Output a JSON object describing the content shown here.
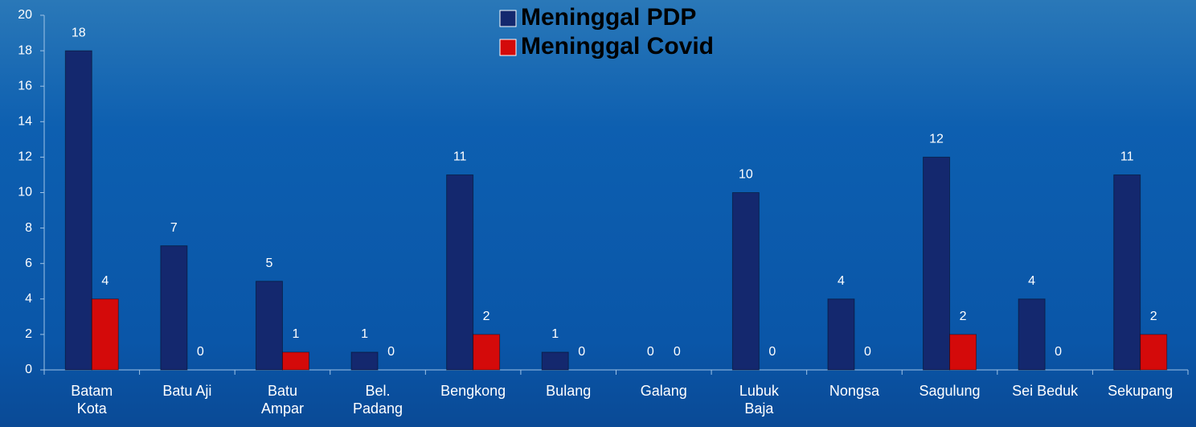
{
  "chart_data": {
    "type": "bar",
    "categories": [
      "Batam Kota",
      "Batu Aji",
      "Batu Ampar",
      "Bel. Padang",
      "Bengkong",
      "Bulang",
      "Galang",
      "Lubuk Baja",
      "Nongsa",
      "Sagulung",
      "Sei Beduk",
      "Sekupang"
    ],
    "series": [
      {
        "name": "Meninggal PDP",
        "color": "#14286e",
        "values": [
          18,
          7,
          5,
          1,
          11,
          1,
          0,
          10,
          4,
          12,
          4,
          11
        ]
      },
      {
        "name": "Meninggal Covid",
        "color": "#d40a0a",
        "values": [
          4,
          0,
          1,
          0,
          2,
          0,
          0,
          0,
          0,
          2,
          0,
          2
        ]
      }
    ],
    "ylim": [
      0,
      20
    ],
    "yticks": [
      0,
      2,
      4,
      6,
      8,
      10,
      12,
      14,
      16,
      18,
      20
    ],
    "legend": "top"
  }
}
